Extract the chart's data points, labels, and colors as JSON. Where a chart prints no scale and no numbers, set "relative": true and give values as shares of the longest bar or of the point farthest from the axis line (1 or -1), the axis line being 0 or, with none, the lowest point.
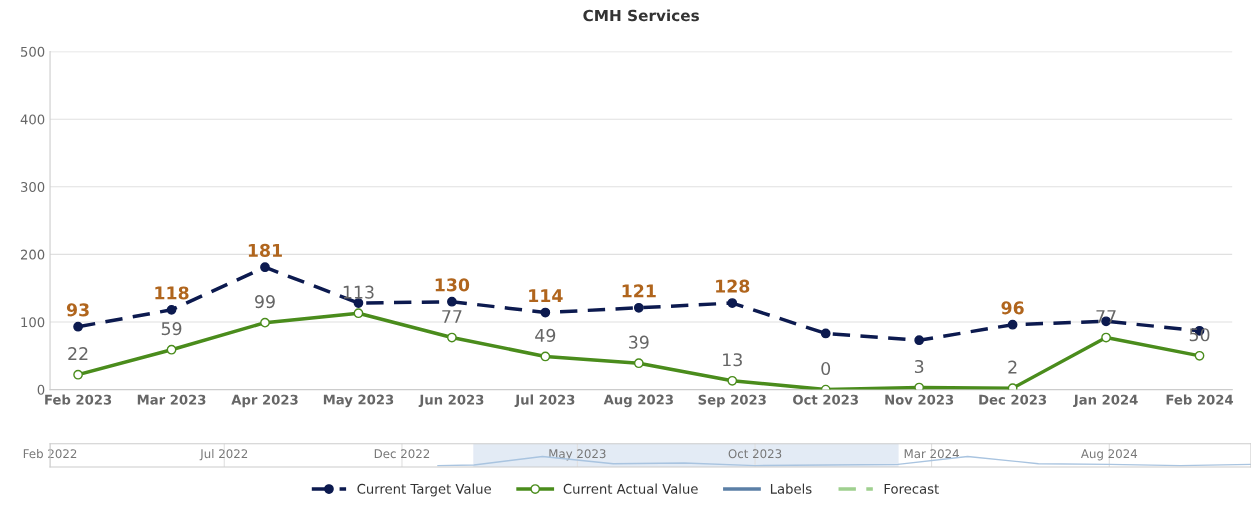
{
  "chart_data": [
    {
      "type": "line",
      "title": "CMH Services",
      "categories": [
        "Feb 2023",
        "Mar 2023",
        "Apr 2023",
        "May 2023",
        "Jun 2023",
        "Jul 2023",
        "Aug 2023",
        "Sep 2023",
        "Oct 2023",
        "Nov 2023",
        "Dec 2023",
        "Jan 2024",
        "Feb 2024"
      ],
      "series": [
        {
          "name": "Current Target Value",
          "color": "#0c1a4f",
          "line_style": "dashed",
          "marker": "circle",
          "values": [
            93,
            118,
            181,
            128,
            130,
            114,
            121,
            128,
            83,
            73,
            96,
            101,
            87
          ],
          "value_labels": [
            "93",
            "118",
            "181",
            null,
            "130",
            "114",
            "121",
            "128",
            null,
            null,
            "96",
            null,
            null
          ]
        },
        {
          "name": "Current Actual Value",
          "color": "#4a8c1c",
          "line_style": "solid",
          "marker": "circle",
          "values": [
            22,
            59,
            99,
            113,
            77,
            49,
            39,
            13,
            0,
            3,
            2,
            77,
            50
          ],
          "value_labels": [
            "22",
            "59",
            "99",
            "113",
            "77",
            "49",
            "39",
            "13",
            "0",
            "3",
            "2",
            "77",
            "50"
          ]
        },
        {
          "name": "Labels",
          "color": "#5b7fa6",
          "line_style": "solid",
          "marker": "none",
          "values": [
            null,
            null,
            null,
            null,
            null,
            null,
            null,
            null,
            null,
            null,
            null,
            null,
            null
          ]
        },
        {
          "name": "Forecast",
          "color": "#9fd08f",
          "line_style": "dashed",
          "marker": "none",
          "values": [
            null,
            null,
            null,
            null,
            null,
            null,
            null,
            null,
            null,
            null,
            null,
            null,
            null
          ]
        }
      ],
      "ylim": [
        0,
        500
      ],
      "yticks": [
        0,
        100,
        200,
        300,
        400,
        500
      ],
      "grid": "y",
      "legend": "bottom"
    },
    {
      "type": "line",
      "relative": true,
      "tick_labels": "x",
      "x": [
        "2023-01",
        "2023-02",
        "2023-04",
        "2023-06",
        "2023-08",
        "2023-10",
        "2023-12",
        "2024-02",
        "2024-04",
        "2024-06",
        "2024-08",
        "2024-10",
        "2024-12"
      ],
      "series": [
        {
          "color": "#a9c4e0",
          "values": [
            0,
            0.07,
            1,
            0.21,
            0.29,
            0,
            0.07,
            0.14,
            1,
            0.21,
            0.14,
            0,
            0.14
          ]
        }
      ],
      "xlim": [
        "2022-02",
        "2024-12"
      ],
      "xticks": [
        {
          "value": "2022-02",
          "label": "Feb 2022"
        },
        {
          "value": "2022-07",
          "label": "Jul 2022"
        },
        {
          "value": "2022-12",
          "label": "Dec 2022"
        },
        {
          "value": "2023-05",
          "label": "May 2023"
        },
        {
          "value": "2023-10",
          "label": "Oct 2023"
        },
        {
          "value": "2024-03",
          "label": "Mar 2024"
        },
        {
          "value": "2024-08",
          "label": "Aug 2024"
        }
      ],
      "bands": [
        {
          "axis": "x",
          "from": "2023-02",
          "to": "2024-02",
          "color": "#e3ebf5"
        }
      ],
      "grid": "x"
    }
  ]
}
